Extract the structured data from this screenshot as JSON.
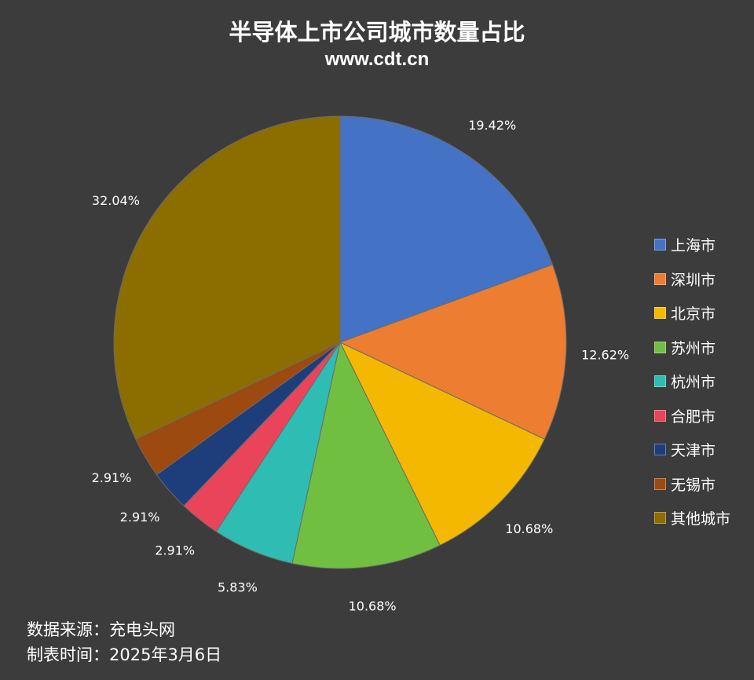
{
  "chart_data": {
    "type": "pie",
    "title": "半导体上市公司城市数量占比",
    "subtitle": "www.cdt.cn",
    "categories": [
      "上海市",
      "深圳市",
      "北京市",
      "苏州市",
      "杭州市",
      "合肥市",
      "天津市",
      "无锡市",
      "其他城市"
    ],
    "values": [
      19.42,
      12.62,
      10.68,
      10.68,
      5.83,
      2.91,
      2.91,
      2.91,
      32.04
    ],
    "value_labels": [
      "19.42%",
      "12.62%",
      "10.68%",
      "10.68%",
      "5.83%",
      "2.91%",
      "2.91%",
      "2.91%",
      "32.04%"
    ],
    "colors": [
      "#4472c4",
      "#ed7d31",
      "#f4b800",
      "#70bf41",
      "#2ebcb3",
      "#e9445a",
      "#1e3d7b",
      "#9c4a0f",
      "#8c6d00"
    ],
    "legend_position": "right",
    "start_angle": "12 o'clock",
    "direction": "clockwise"
  },
  "footer": {
    "source": "数据来源：充电头网",
    "date": "制表时间：2025年3月6日"
  }
}
